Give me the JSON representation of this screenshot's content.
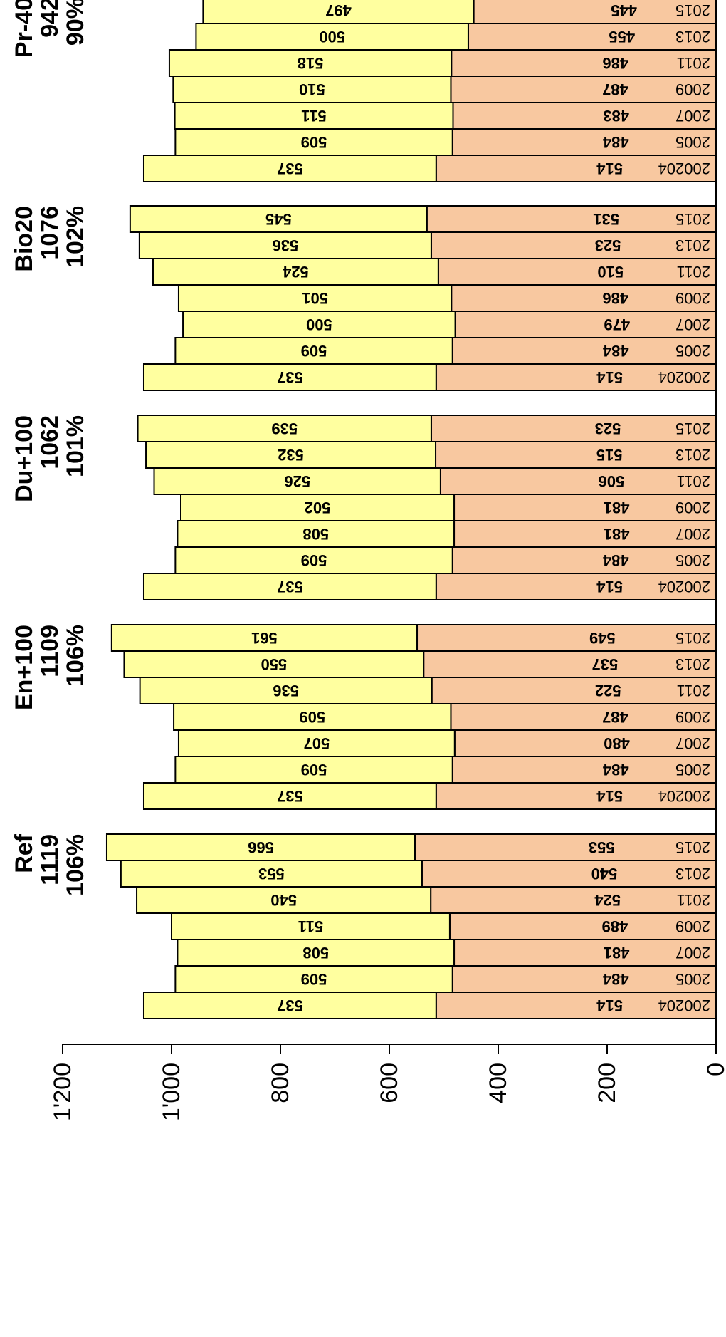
{
  "chart_data": {
    "type": "bar",
    "stacked": true,
    "orientation": "horizontal (rendered rotated 180°, upside-down)",
    "value_axis": {
      "ticks": [
        "0",
        "200",
        "400",
        "600",
        "800",
        "1'000",
        "1'200"
      ],
      "range": [
        0,
        1200
      ]
    },
    "colors": {
      "lower": "#f8c8a0",
      "upper": "#ffff9f",
      "edge": "#000000"
    },
    "groups": [
      {
        "name": "Ref",
        "total": "1119",
        "pct": "106%",
        "bars": [
          {
            "year": "200204",
            "lower": 514,
            "upper": 537
          },
          {
            "year": "2005",
            "lower": 484,
            "upper": 509
          },
          {
            "year": "2007",
            "lower": 481,
            "upper": 508
          },
          {
            "year": "2009",
            "lower": 489,
            "upper": 511
          },
          {
            "year": "2011",
            "lower": 524,
            "upper": 540
          },
          {
            "year": "2013",
            "lower": 540,
            "upper": 553
          },
          {
            "year": "2015",
            "lower": 553,
            "upper": 566
          }
        ]
      },
      {
        "name": "En+100",
        "total": "1109",
        "pct": "106%",
        "bars": [
          {
            "year": "200204",
            "lower": 514,
            "upper": 537
          },
          {
            "year": "2005",
            "lower": 484,
            "upper": 509
          },
          {
            "year": "2007",
            "lower": 480,
            "upper": 507
          },
          {
            "year": "2009",
            "lower": 487,
            "upper": 509
          },
          {
            "year": "2011",
            "lower": 522,
            "upper": 536
          },
          {
            "year": "2013",
            "lower": 537,
            "upper": 550
          },
          {
            "year": "2015",
            "lower": 549,
            "upper": 561
          }
        ]
      },
      {
        "name": "Du+100",
        "total": "1062",
        "pct": "101%",
        "bars": [
          {
            "year": "200204",
            "lower": 514,
            "upper": 537
          },
          {
            "year": "2005",
            "lower": 484,
            "upper": 509
          },
          {
            "year": "2007",
            "lower": 481,
            "upper": 508
          },
          {
            "year": "2009",
            "lower": 481,
            "upper": 502
          },
          {
            "year": "2011",
            "lower": 506,
            "upper": 526
          },
          {
            "year": "2013",
            "lower": 515,
            "upper": 532
          },
          {
            "year": "2015",
            "lower": 523,
            "upper": 539
          }
        ]
      },
      {
        "name": "Bio20",
        "total": "1076",
        "pct": "102%",
        "bars": [
          {
            "year": "200204",
            "lower": 514,
            "upper": 537
          },
          {
            "year": "2005",
            "lower": 484,
            "upper": 509
          },
          {
            "year": "2007",
            "lower": 479,
            "upper": 500
          },
          {
            "year": "2009",
            "lower": 486,
            "upper": 501
          },
          {
            "year": "2011",
            "lower": 510,
            "upper": 524
          },
          {
            "year": "2013",
            "lower": 523,
            "upper": 536
          },
          {
            "year": "2015",
            "lower": 531,
            "upper": 545
          }
        ]
      },
      {
        "name": "Pr-40",
        "total": "942",
        "pct": "90%",
        "bars": [
          {
            "year": "200204",
            "lower": 514,
            "upper": 537
          },
          {
            "year": "2005",
            "lower": 484,
            "upper": 509
          },
          {
            "year": "2007",
            "lower": 483,
            "upper": 511
          },
          {
            "year": "2009",
            "lower": 487,
            "upper": 510
          },
          {
            "year": "2011",
            "lower": 486,
            "upper": 518
          },
          {
            "year": "2013",
            "lower": 455,
            "upper": 500
          },
          {
            "year": "2015",
            "lower": 445,
            "upper": 497
          }
        ]
      }
    ]
  }
}
